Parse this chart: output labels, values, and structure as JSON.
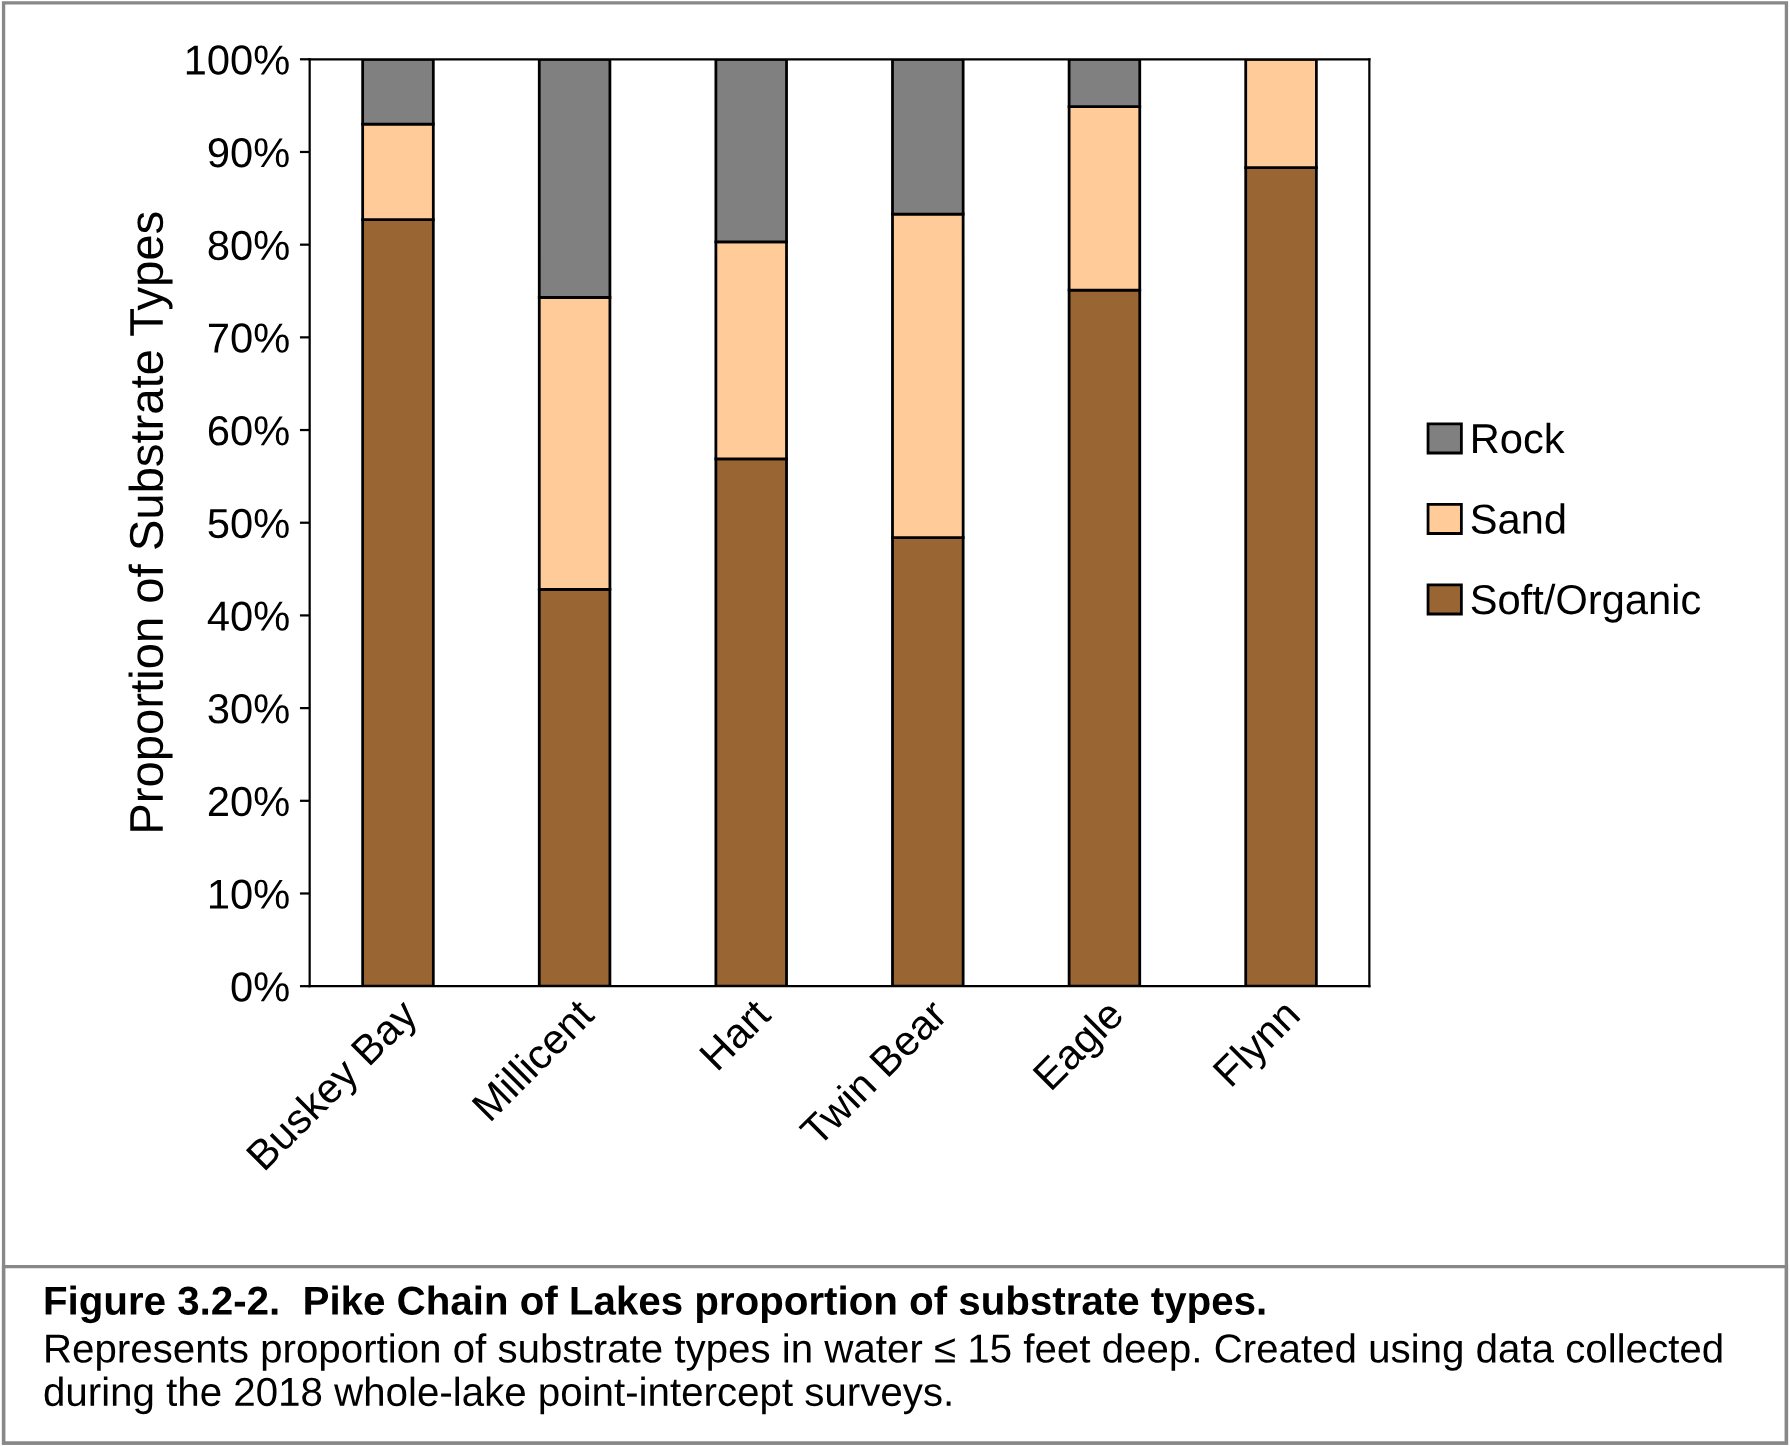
{
  "chart_data": {
    "type": "bar",
    "stacked": true,
    "title": "Figure 3.2-2.  Pike Chain of Lakes proportion of substrate types.",
    "annotations": [
      "Represents proportion of substrate types in water ≤ 15 feet deep. Created using data collected during the 2018 whole-lake point-intercept surveys."
    ],
    "ylabel": "Proportion of Substrate Types",
    "categories": [
      "Buskey Bay",
      "Millicent",
      "Hart",
      "Twin Bear",
      "Eagle",
      "Flynn"
    ],
    "series": [
      {
        "name": "Soft/Organic",
        "color": "#996633",
        "values": [
          82.7,
          42.8,
          56.9,
          48.4,
          75.1,
          88.3
        ]
      },
      {
        "name": "Sand",
        "color": "#ffcc99",
        "values": [
          10.3,
          31.5,
          23.4,
          34.9,
          19.8,
          11.7
        ]
      },
      {
        "name": "Rock",
        "color": "#808080",
        "values": [
          7.0,
          25.7,
          19.7,
          16.7,
          5.1,
          null
        ]
      }
    ],
    "ylim": [
      0,
      100
    ],
    "yticks": [
      {
        "value": 0,
        "label": "0%"
      },
      {
        "value": 10,
        "label": "10%"
      },
      {
        "value": 20,
        "label": "20%"
      },
      {
        "value": 30,
        "label": "30%"
      },
      {
        "value": 40,
        "label": "40%"
      },
      {
        "value": 50,
        "label": "50%"
      },
      {
        "value": 60,
        "label": "60%"
      },
      {
        "value": 70,
        "label": "70%"
      },
      {
        "value": 80,
        "label": "80%"
      },
      {
        "value": 90,
        "label": "90%"
      },
      {
        "value": 100,
        "label": "100%"
      }
    ],
    "grid": false,
    "legend": "right"
  }
}
